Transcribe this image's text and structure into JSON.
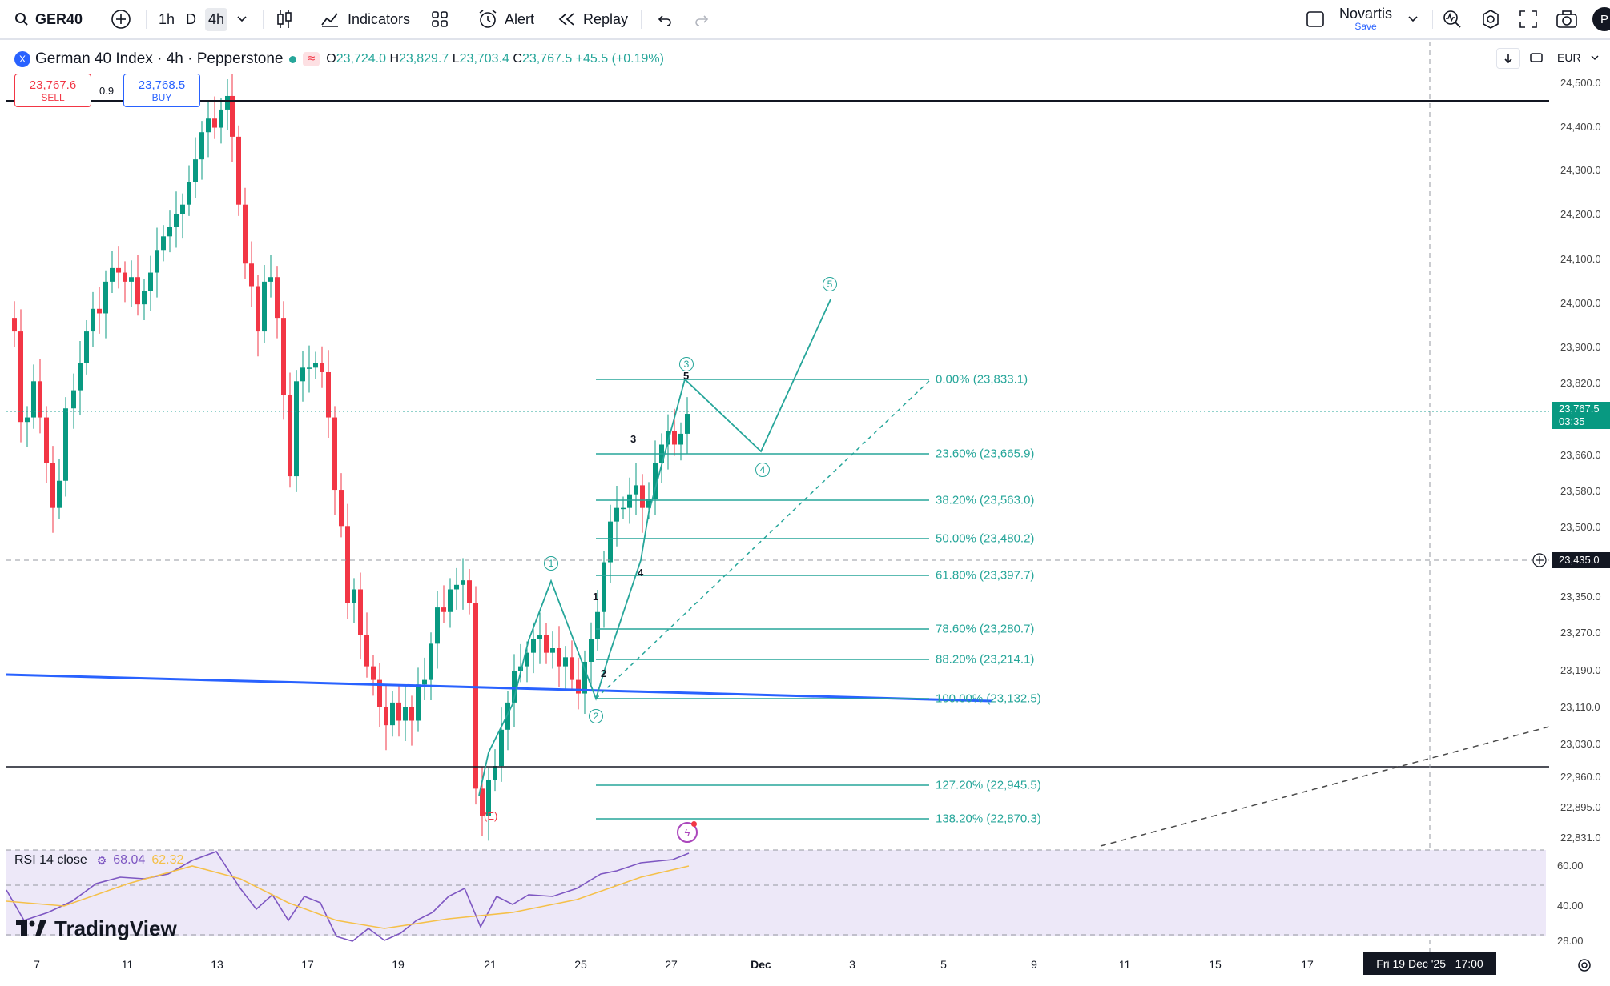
{
  "toolbar": {
    "symbol": "GER40",
    "timeframes": [
      "1h",
      "D",
      "4h"
    ],
    "indicators_label": "Indicators",
    "alert_label": "Alert",
    "replay_label": "Replay",
    "watch_name": "Novartis",
    "watch_sub": "Save",
    "profile_initial": "P"
  },
  "legend": {
    "title": "German 40 Index · 4h · Pepperstone",
    "symbol_icon": "X",
    "o_label": "O",
    "o": "23,724.0",
    "h_label": "H",
    "h": "23,829.7",
    "l_label": "L",
    "l": "23,703.4",
    "c_label": "C",
    "c": "23,767.5",
    "change": "+45.5 (+0.19%)"
  },
  "trade": {
    "sell_price": "23,767.6",
    "sell_label": "SELL",
    "spread": "0.9",
    "buy_price": "23,768.5",
    "buy_label": "BUY"
  },
  "currency": "EUR",
  "price_axis": [
    "24,500.0",
    "24,400.0",
    "24,300.0",
    "24,200.0",
    "24,100.0",
    "24,000.0",
    "23,900.0",
    "23,820.0",
    "23,660.0",
    "23,580.0",
    "23,500.0",
    "23,350.0",
    "23,270.0",
    "23,190.0",
    "23,110.0",
    "23,030.0",
    "22,960.0",
    "22,895.0",
    "22,831.0"
  ],
  "current_price": "23,767.5",
  "countdown": "03:35",
  "crosshair_price": "23,435.0",
  "fib_levels": [
    {
      "label": "0.00% (23,833.1)",
      "color": "#26a69a"
    },
    {
      "label": "23.60% (23,665.9)",
      "color": "#26a69a"
    },
    {
      "label": "38.20% (23,563.0)",
      "color": "#26a69a"
    },
    {
      "label": "50.00% (23,480.2)",
      "color": "#26a69a"
    },
    {
      "label": "61.80% (23,397.7)",
      "color": "#26a69a"
    },
    {
      "label": "78.60% (23,280.7)",
      "color": "#26a69a"
    },
    {
      "label": "88.20% (23,214.1)",
      "color": "#26a69a"
    },
    {
      "label": "100.00% (23,132.5)",
      "color": "#26a69a"
    },
    {
      "label": "127.20% (22,945.5)",
      "color": "#26a69a"
    },
    {
      "label": "138.20% (22,870.3)",
      "color": "#26a69a"
    }
  ],
  "wave_labels": {
    "w1": "1",
    "w2": "2",
    "w3": "3",
    "w4": "4",
    "w5": "5",
    "s1": "1",
    "s2": "2",
    "s3": "3",
    "s4": "4",
    "s5": "5",
    "e": "(E)"
  },
  "rsi": {
    "title": "RSI 14 close",
    "value": "68.04",
    "ma_value": "62.32",
    "axis": [
      "60.00",
      "40.00",
      "28.00"
    ]
  },
  "dates": [
    "7",
    "11",
    "13",
    "17",
    "19",
    "21",
    "25",
    "27",
    "Dec",
    "3",
    "5",
    "9",
    "11",
    "15",
    "17"
  ],
  "crosshair_date": "Fri 19 Dec '25   17:00",
  "brand": "TradingView",
  "colors": {
    "up": "#089981",
    "down": "#f23645",
    "fib": "#26a69a",
    "trendline": "#2962ff",
    "rsi": "#7e57c2",
    "rsi_ma": "#f5c04a"
  }
}
